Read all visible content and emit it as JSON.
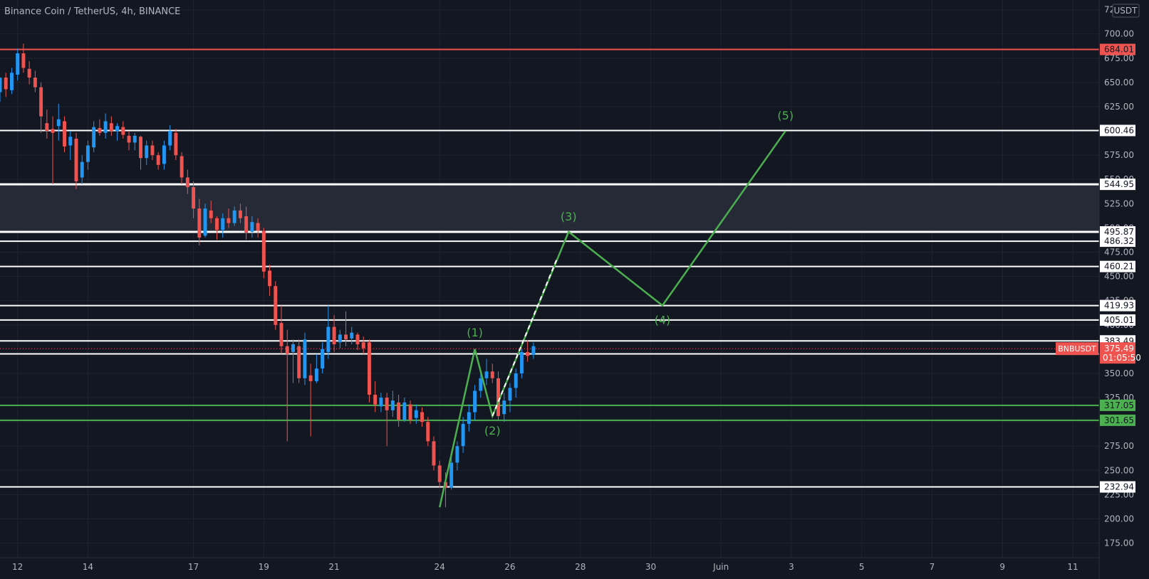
{
  "header": {
    "title": "Binance Coin / TetherUS, 4h, BINANCE"
  },
  "currency_label": "USDT",
  "colors": {
    "background": "#131722",
    "grid": "#1f2330",
    "up": "#2196f3",
    "down": "#ef5350",
    "wave": "#4caf50",
    "support": "#4caf50",
    "resistance": "#ef5350",
    "level": "#ffffff",
    "zone": "#2a2e39",
    "axis_text": "#b2b5be"
  },
  "chart_data": {
    "type": "candlestick",
    "title": "Binance Coin / TetherUS, 4h, BINANCE",
    "ylim": [
      160,
      735
    ],
    "xlim": [
      "2021-05-11T12:00",
      "2021-06-11T18:00"
    ],
    "y_ticks": [
      175,
      200,
      225,
      250,
      275,
      300,
      325,
      350,
      375,
      400,
      425,
      450,
      475,
      500,
      525,
      550,
      575,
      600,
      625,
      650,
      675,
      700,
      725
    ],
    "y_tick_labels": [
      "175.00",
      "200.00",
      "225.00",
      "250.00",
      "275.00",
      "300.00",
      "325.00",
      "350.00",
      "375.00",
      "400.00",
      "425.00",
      "450.00",
      "475.00",
      "500.00",
      "525.00",
      "550.00",
      "575.00",
      "600.00",
      "625.00",
      "650.00",
      "675.00",
      "700.00",
      "725.00"
    ],
    "x_ticks": [
      {
        "date": "2021-05-12",
        "label": "12"
      },
      {
        "date": "2021-05-14",
        "label": "14"
      },
      {
        "date": "2021-05-17",
        "label": "17"
      },
      {
        "date": "2021-05-19",
        "label": "19"
      },
      {
        "date": "2021-05-21",
        "label": "21"
      },
      {
        "date": "2021-05-24",
        "label": "24"
      },
      {
        "date": "2021-05-26",
        "label": "26"
      },
      {
        "date": "2021-05-28",
        "label": "28"
      },
      {
        "date": "2021-05-30",
        "label": "30"
      },
      {
        "date": "2021-06-01",
        "label": "Juin"
      },
      {
        "date": "2021-06-03",
        "label": "3"
      },
      {
        "date": "2021-06-05",
        "label": "5"
      },
      {
        "date": "2021-06-07",
        "label": "7"
      },
      {
        "date": "2021-06-09",
        "label": "9"
      },
      {
        "date": "2021-06-11",
        "label": "11"
      }
    ],
    "candles": [
      [
        "2021-05-11T12:00",
        630,
        655,
        640,
        655
      ],
      [
        "2021-05-11T16:00",
        635,
        660,
        655,
        643
      ],
      [
        "2021-05-11T20:00",
        638,
        665,
        642,
        660
      ],
      [
        "2021-05-12T00:00",
        652,
        685,
        658,
        680
      ],
      [
        "2021-05-12T04:00",
        660,
        690,
        680,
        665
      ],
      [
        "2021-05-12T08:00",
        648,
        672,
        664,
        655
      ],
      [
        "2021-05-12T12:00",
        640,
        662,
        655,
        645
      ],
      [
        "2021-05-12T16:00",
        598,
        650,
        645,
        615
      ],
      [
        "2021-05-12T20:00",
        592,
        622,
        608,
        600
      ],
      [
        "2021-05-13T00:00",
        545,
        615,
        602,
        598
      ],
      [
        "2021-05-13T04:00",
        590,
        628,
        605,
        612
      ],
      [
        "2021-05-13T08:00",
        578,
        615,
        610,
        584
      ],
      [
        "2021-05-13T12:00",
        570,
        600,
        585,
        594
      ],
      [
        "2021-05-13T16:00",
        540,
        598,
        592,
        548
      ],
      [
        "2021-05-13T20:00",
        545,
        575,
        552,
        568
      ],
      [
        "2021-05-14T00:00",
        560,
        590,
        568,
        585
      ],
      [
        "2021-05-14T04:00",
        578,
        610,
        583,
        604
      ],
      [
        "2021-05-14T08:00",
        595,
        612,
        603,
        598
      ],
      [
        "2021-05-14T12:00",
        592,
        618,
        598,
        610
      ],
      [
        "2021-05-14T16:00",
        595,
        615,
        608,
        600
      ],
      [
        "2021-05-14T20:00",
        590,
        608,
        600,
        605
      ],
      [
        "2021-05-15T00:00",
        592,
        610,
        604,
        596
      ],
      [
        "2021-05-15T04:00",
        580,
        600,
        595,
        588
      ],
      [
        "2021-05-15T08:00",
        580,
        598,
        588,
        595
      ],
      [
        "2021-05-15T12:00",
        560,
        595,
        594,
        572
      ],
      [
        "2021-05-15T16:00",
        565,
        590,
        572,
        585
      ],
      [
        "2021-05-15T20:00",
        570,
        590,
        585,
        575
      ],
      [
        "2021-05-16T00:00",
        560,
        578,
        575,
        565
      ],
      [
        "2021-05-16T04:00",
        560,
        590,
        566,
        585
      ],
      [
        "2021-05-16T08:00",
        580,
        606,
        585,
        600
      ],
      [
        "2021-05-16T12:00",
        570,
        602,
        598,
        575
      ],
      [
        "2021-05-16T16:00",
        545,
        578,
        574,
        552
      ],
      [
        "2021-05-16T20:00",
        535,
        560,
        552,
        542
      ],
      [
        "2021-05-17T00:00",
        510,
        548,
        542,
        520
      ],
      [
        "2021-05-17T04:00",
        482,
        530,
        520,
        490
      ],
      [
        "2021-05-17T08:00",
        490,
        525,
        492,
        520
      ],
      [
        "2021-05-17T12:00",
        505,
        528,
        518,
        510
      ],
      [
        "2021-05-17T16:00",
        488,
        512,
        510,
        498
      ],
      [
        "2021-05-17T20:00",
        490,
        515,
        498,
        510
      ],
      [
        "2021-05-18T00:00",
        500,
        520,
        510,
        505
      ],
      [
        "2021-05-18T04:00",
        502,
        522,
        505,
        518
      ],
      [
        "2021-05-18T08:00",
        505,
        525,
        518,
        510
      ],
      [
        "2021-05-18T12:00",
        488,
        522,
        512,
        495
      ],
      [
        "2021-05-18T16:00",
        490,
        512,
        496,
        506
      ],
      [
        "2021-05-18T20:00",
        490,
        510,
        505,
        497
      ],
      [
        "2021-05-19T00:00",
        448,
        500,
        497,
        455
      ],
      [
        "2021-05-19T04:00",
        430,
        462,
        456,
        440
      ],
      [
        "2021-05-19T08:00",
        395,
        445,
        440,
        400
      ],
      [
        "2021-05-19T12:00",
        370,
        420,
        402,
        378
      ],
      [
        "2021-05-19T16:00",
        280,
        395,
        378,
        370
      ],
      [
        "2021-05-19T20:00",
        340,
        385,
        372,
        380
      ],
      [
        "2021-05-20T00:00",
        340,
        385,
        378,
        345
      ],
      [
        "2021-05-20T04:00",
        338,
        392,
        345,
        385
      ],
      [
        "2021-05-20T08:00",
        285,
        360,
        348,
        342
      ],
      [
        "2021-05-20T12:00",
        340,
        370,
        342,
        355
      ],
      [
        "2021-05-20T16:00",
        350,
        382,
        355,
        375
      ],
      [
        "2021-05-20T20:00",
        365,
        420,
        372,
        398
      ],
      [
        "2021-05-21T00:00",
        372,
        410,
        398,
        380
      ],
      [
        "2021-05-21T04:00",
        376,
        395,
        382,
        390
      ],
      [
        "2021-05-21T08:00",
        378,
        414,
        390,
        385
      ],
      [
        "2021-05-21T12:00",
        380,
        398,
        386,
        392
      ],
      [
        "2021-05-21T16:00",
        374,
        392,
        390,
        380
      ],
      [
        "2021-05-21T20:00",
        370,
        388,
        382,
        376
      ],
      [
        "2021-05-22T00:00",
        320,
        385,
        382,
        328
      ],
      [
        "2021-05-22T04:00",
        310,
        342,
        328,
        318
      ],
      [
        "2021-05-22T08:00",
        310,
        330,
        316,
        325
      ],
      [
        "2021-05-22T12:00",
        275,
        330,
        325,
        312
      ],
      [
        "2021-05-22T16:00",
        305,
        332,
        312,
        322
      ],
      [
        "2021-05-22T20:00",
        295,
        328,
        320,
        302
      ],
      [
        "2021-05-23T00:00",
        300,
        325,
        302,
        320
      ],
      [
        "2021-05-23T04:00",
        298,
        322,
        318,
        302
      ],
      [
        "2021-05-23T08:00",
        298,
        318,
        304,
        312
      ],
      [
        "2021-05-23T12:00",
        295,
        315,
        310,
        300
      ],
      [
        "2021-05-23T16:00",
        275,
        305,
        300,
        280
      ],
      [
        "2021-05-23T20:00",
        250,
        285,
        280,
        255
      ],
      [
        "2021-05-24T00:00",
        232,
        260,
        255,
        238
      ],
      [
        "2021-05-24T04:00",
        212,
        248,
        238,
        232
      ],
      [
        "2021-05-24T08:00",
        230,
        265,
        232,
        258
      ],
      [
        "2021-05-24T12:00",
        250,
        280,
        258,
        275
      ],
      [
        "2021-05-24T16:00",
        268,
        305,
        275,
        298
      ],
      [
        "2021-05-24T20:00",
        290,
        318,
        298,
        310
      ],
      [
        "2021-05-25T00:00",
        302,
        338,
        310,
        332
      ],
      [
        "2021-05-25T04:00",
        325,
        352,
        332,
        345
      ],
      [
        "2021-05-25T08:00",
        338,
        365,
        345,
        352
      ],
      [
        "2021-05-25T12:00",
        340,
        360,
        352,
        345
      ],
      [
        "2021-05-25T16:00",
        302,
        352,
        345,
        306
      ],
      [
        "2021-05-25T20:00",
        300,
        330,
        308,
        322
      ],
      [
        "2021-05-26T00:00",
        310,
        340,
        322,
        335
      ],
      [
        "2021-05-26T04:00",
        325,
        355,
        335,
        350
      ],
      [
        "2021-05-26T08:00",
        345,
        375,
        350,
        372
      ],
      [
        "2021-05-26T12:00",
        362,
        384,
        372,
        368
      ],
      [
        "2021-05-26T16:00",
        365,
        382,
        369,
        378
      ]
    ],
    "horizontal_levels": [
      {
        "value": 684.01,
        "label": "684.01",
        "color": "#ef5350"
      },
      {
        "value": 600.46,
        "label": "600.46",
        "color": "#ffffff"
      },
      {
        "value": 544.95,
        "label": "544.95",
        "color": "#ffffff"
      },
      {
        "value": 495.87,
        "label": "495.87",
        "color": "#ffffff"
      },
      {
        "value": 486.32,
        "label": "486.32",
        "color": "#ffffff"
      },
      {
        "value": 460.21,
        "label": "460.21",
        "color": "#ffffff"
      },
      {
        "value": 419.93,
        "label": "419.93",
        "color": "#ffffff"
      },
      {
        "value": 405.01,
        "label": "405.01",
        "color": "#ffffff"
      },
      {
        "value": 383.49,
        "label": "383.49",
        "color": "#ffffff"
      },
      {
        "value": 370.14,
        "label": "370.14",
        "color": "#ffffff"
      },
      {
        "value": 317.05,
        "label": "317.05",
        "color": "#4caf50"
      },
      {
        "value": 301.65,
        "label": "301.65",
        "color": "#4caf50"
      },
      {
        "value": 232.94,
        "label": "232.94",
        "color": "#ffffff"
      }
    ],
    "zone": {
      "from": 495.87,
      "to": 544.95
    },
    "current_price": {
      "value": 375.49,
      "label": "375.49",
      "countdown": "01:05:50",
      "symbol": "BNBUSDT"
    },
    "wave": [
      {
        "date": "2021-05-24T00:00",
        "value": 212,
        "label": ""
      },
      {
        "date": "2021-05-25T00:00",
        "value": 375,
        "label": "(1)"
      },
      {
        "date": "2021-05-25T12:00",
        "value": 306,
        "label": "(2)"
      },
      {
        "date": "2021-05-27T16:00",
        "value": 496,
        "label": "(3)"
      },
      {
        "date": "2021-05-30T08:00",
        "value": 420,
        "label": "(4)"
      },
      {
        "date": "2021-06-02T20:00",
        "value": 600,
        "label": "(5)"
      }
    ],
    "projection_dashed": [
      {
        "date": "2021-05-25T12:00",
        "value": 306
      },
      {
        "date": "2021-05-27T08:00",
        "value": 468
      }
    ]
  }
}
